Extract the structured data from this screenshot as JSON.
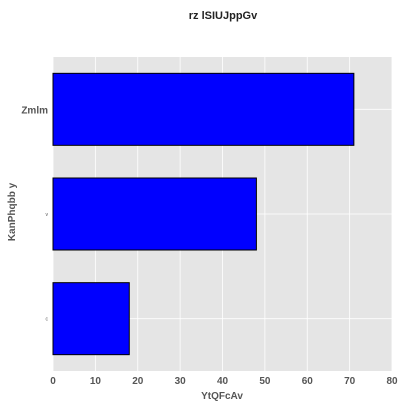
{
  "chart_data": {
    "type": "bar",
    "orientation": "horizontal",
    "title": "rz lSIUJppGv",
    "xlabel": "YtQFcAv",
    "ylabel": "KanPhqbb   y",
    "categories": [
      "Zmlm",
      "v",
      "c"
    ],
    "values": [
      71,
      48,
      18
    ],
    "xlim": [
      0,
      80
    ],
    "xticks": [
      "0",
      "10",
      "20",
      "30",
      "40",
      "50",
      "60",
      "70",
      "80"
    ],
    "grid": true,
    "bar_color": "#0000ff",
    "bar_edge_color": "#000000",
    "plot_background": "#e5e5e5",
    "grid_color": "#ffffff"
  }
}
